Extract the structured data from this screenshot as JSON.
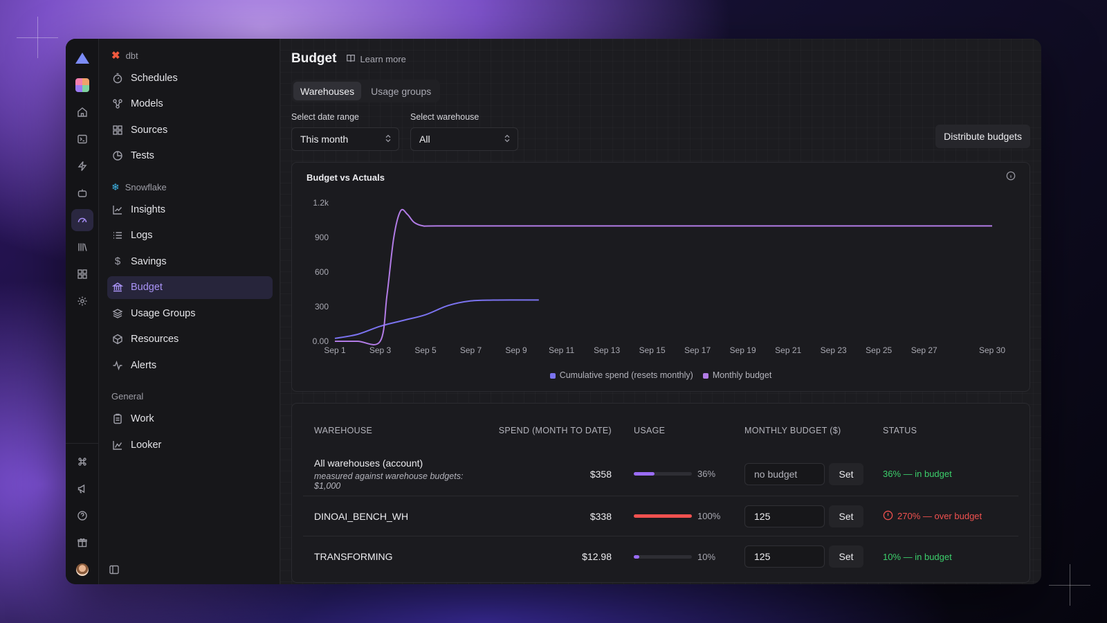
{
  "brand": {
    "accent": "#a58cf5",
    "in_budget_color": "#3ccf6b",
    "over_budget_color": "#f0514f"
  },
  "rail": {
    "top": [
      "logo-icon",
      "workspace-icon",
      "home-icon",
      "terminal-icon",
      "bolt-icon",
      "bot-icon",
      "gauge-icon",
      "library-icon",
      "apps-icon",
      "settings-icon"
    ],
    "bottom": [
      "command-icon",
      "megaphone-icon",
      "help-icon",
      "gift-icon",
      "avatar"
    ]
  },
  "sidebar": {
    "sections": [
      {
        "label": "dbt",
        "items": [
          {
            "label": "Schedules",
            "icon": "timer-icon"
          },
          {
            "label": "Models",
            "icon": "models-icon"
          },
          {
            "label": "Sources",
            "icon": "grid-icon"
          },
          {
            "label": "Tests",
            "icon": "pie-icon"
          }
        ]
      },
      {
        "label": "Snowflake",
        "items": [
          {
            "label": "Insights",
            "icon": "chart-icon"
          },
          {
            "label": "Logs",
            "icon": "list-icon"
          },
          {
            "label": "Savings",
            "icon": "dollar-icon"
          },
          {
            "label": "Budget",
            "icon": "bank-icon",
            "active": true
          },
          {
            "label": "Usage Groups",
            "icon": "layers-icon"
          },
          {
            "label": "Resources",
            "icon": "box-icon"
          },
          {
            "label": "Alerts",
            "icon": "pulse-icon"
          }
        ]
      },
      {
        "label": "General",
        "items": [
          {
            "label": "Work",
            "icon": "clipboard-icon"
          },
          {
            "label": "Looker",
            "icon": "line-chart-icon"
          }
        ]
      }
    ]
  },
  "header": {
    "title": "Budget",
    "learn_more": "Learn more"
  },
  "tabs": [
    {
      "label": "Warehouses",
      "active": true
    },
    {
      "label": "Usage groups"
    }
  ],
  "filters": {
    "date_range": {
      "label": "Select date range",
      "value": "This month"
    },
    "warehouse": {
      "label": "Select warehouse",
      "value": "All"
    }
  },
  "actions": {
    "distribute": "Distribute budgets"
  },
  "chart_data": {
    "type": "line",
    "title": "Budget vs Actuals",
    "x_ticks": [
      "Sep 1",
      "Sep 3",
      "Sep 5",
      "Sep 7",
      "Sep 9",
      "Sep 11",
      "Sep 13",
      "Sep 15",
      "Sep 17",
      "Sep 19",
      "Sep 21",
      "Sep 23",
      "Sep 25",
      "Sep 27",
      "Sep 30"
    ],
    "y_ticks": [
      "0.00",
      "300",
      "600",
      "900",
      "1.2k"
    ],
    "ylim": [
      0,
      1200
    ],
    "xlim": [
      1,
      30
    ],
    "series": [
      {
        "name": "Cumulative spend (resets monthly)",
        "color": "#7b73f0",
        "points": [
          [
            1,
            25
          ],
          [
            2,
            60
          ],
          [
            3,
            130
          ],
          [
            4,
            180
          ],
          [
            5,
            230
          ],
          [
            6,
            310
          ],
          [
            7,
            350
          ],
          [
            8,
            357
          ],
          [
            9,
            358
          ],
          [
            10,
            358
          ]
        ]
      },
      {
        "name": "Monthly budget",
        "color": "#b27ce6",
        "points": [
          [
            1,
            0
          ],
          [
            2,
            0
          ],
          [
            3,
            0
          ],
          [
            3.3,
            400
          ],
          [
            3.6,
            900
          ],
          [
            3.9,
            1130
          ],
          [
            4.2,
            1100
          ],
          [
            4.5,
            1030
          ],
          [
            4.9,
            1000
          ],
          [
            5.5,
            1000
          ],
          [
            10,
            1000
          ],
          [
            20,
            1000
          ],
          [
            30,
            1000
          ]
        ]
      }
    ],
    "legend": "bottom-center",
    "grid": false
  },
  "table": {
    "headers": [
      "WAREHOUSE",
      "SPEND (MONTH TO DATE)",
      "USAGE",
      "MONTHLY BUDGET ($)",
      "STATUS"
    ],
    "rows": [
      {
        "name": "All warehouses (account)",
        "sub": "measured against warehouse budgets: $1,000",
        "spend": "$358",
        "usage_pct": 36,
        "usage_label": "36%",
        "bar_color": "#9a6cf5",
        "budget": "no budget",
        "budget_placeholder": true,
        "set": "Set",
        "status": "36% — in budget",
        "status_kind": "ok"
      },
      {
        "name": "DINOAI_BENCH_WH",
        "sub": "",
        "spend": "$338",
        "usage_pct": 100,
        "usage_label": "100%",
        "bar_color": "#f0514f",
        "budget": "125",
        "set": "Set",
        "status": "270% — over budget",
        "status_kind": "over"
      },
      {
        "name": "TRANSFORMING",
        "sub": "",
        "spend": "$12.98",
        "usage_pct": 10,
        "usage_label": "10%",
        "bar_color": "#9a6cf5",
        "budget": "125",
        "set": "Set",
        "status": "10% — in budget",
        "status_kind": "ok"
      }
    ]
  }
}
